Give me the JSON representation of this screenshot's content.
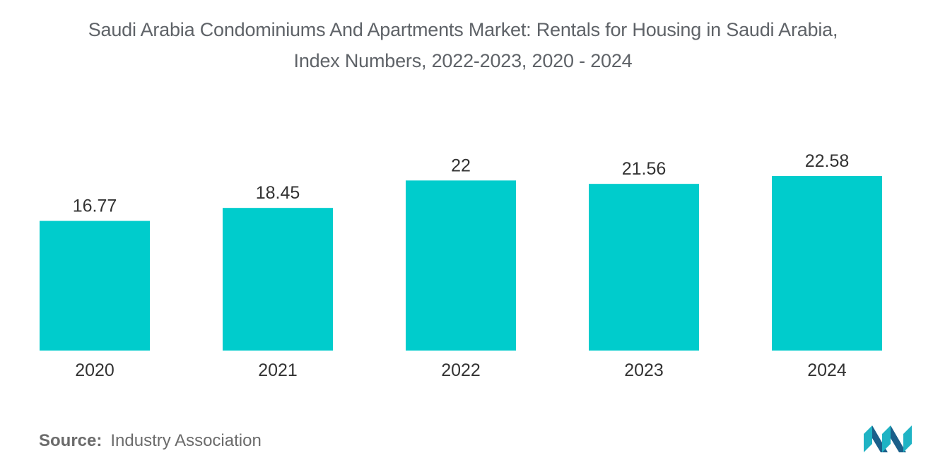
{
  "title": {
    "line1": "Saudi Arabia Condominiums And Apartments Market: Rentals for Housing in Saudi Arabia,",
    "line2": "Index Numbers, 2022-2023, 2020 - 2024"
  },
  "source": {
    "label": "Source:",
    "value": "Industry Association"
  },
  "logo": {
    "icon": "mordor-intelligence-logo",
    "colors": [
      "#1fb3c4",
      "#1b5f8a"
    ]
  },
  "chart_data": {
    "type": "bar",
    "title": "Saudi Arabia Condominiums And Apartments Market: Rentals for Housing in Saudi Arabia, Index Numbers, 2022-2023, 2020 - 2024",
    "categories": [
      "2020",
      "2021",
      "2022",
      "2023",
      "2024"
    ],
    "values": [
      16.77,
      18.45,
      22,
      21.56,
      22.58
    ],
    "data_labels": [
      "16.77",
      "18.45",
      "22",
      "21.56",
      "22.58"
    ],
    "xlabel": "",
    "ylabel": "",
    "ylim": [
      0,
      22.58
    ],
    "grid": false,
    "legend": "none",
    "bar_color": "#00cccc",
    "label_color": "#333333",
    "tick_color": "#333333"
  }
}
